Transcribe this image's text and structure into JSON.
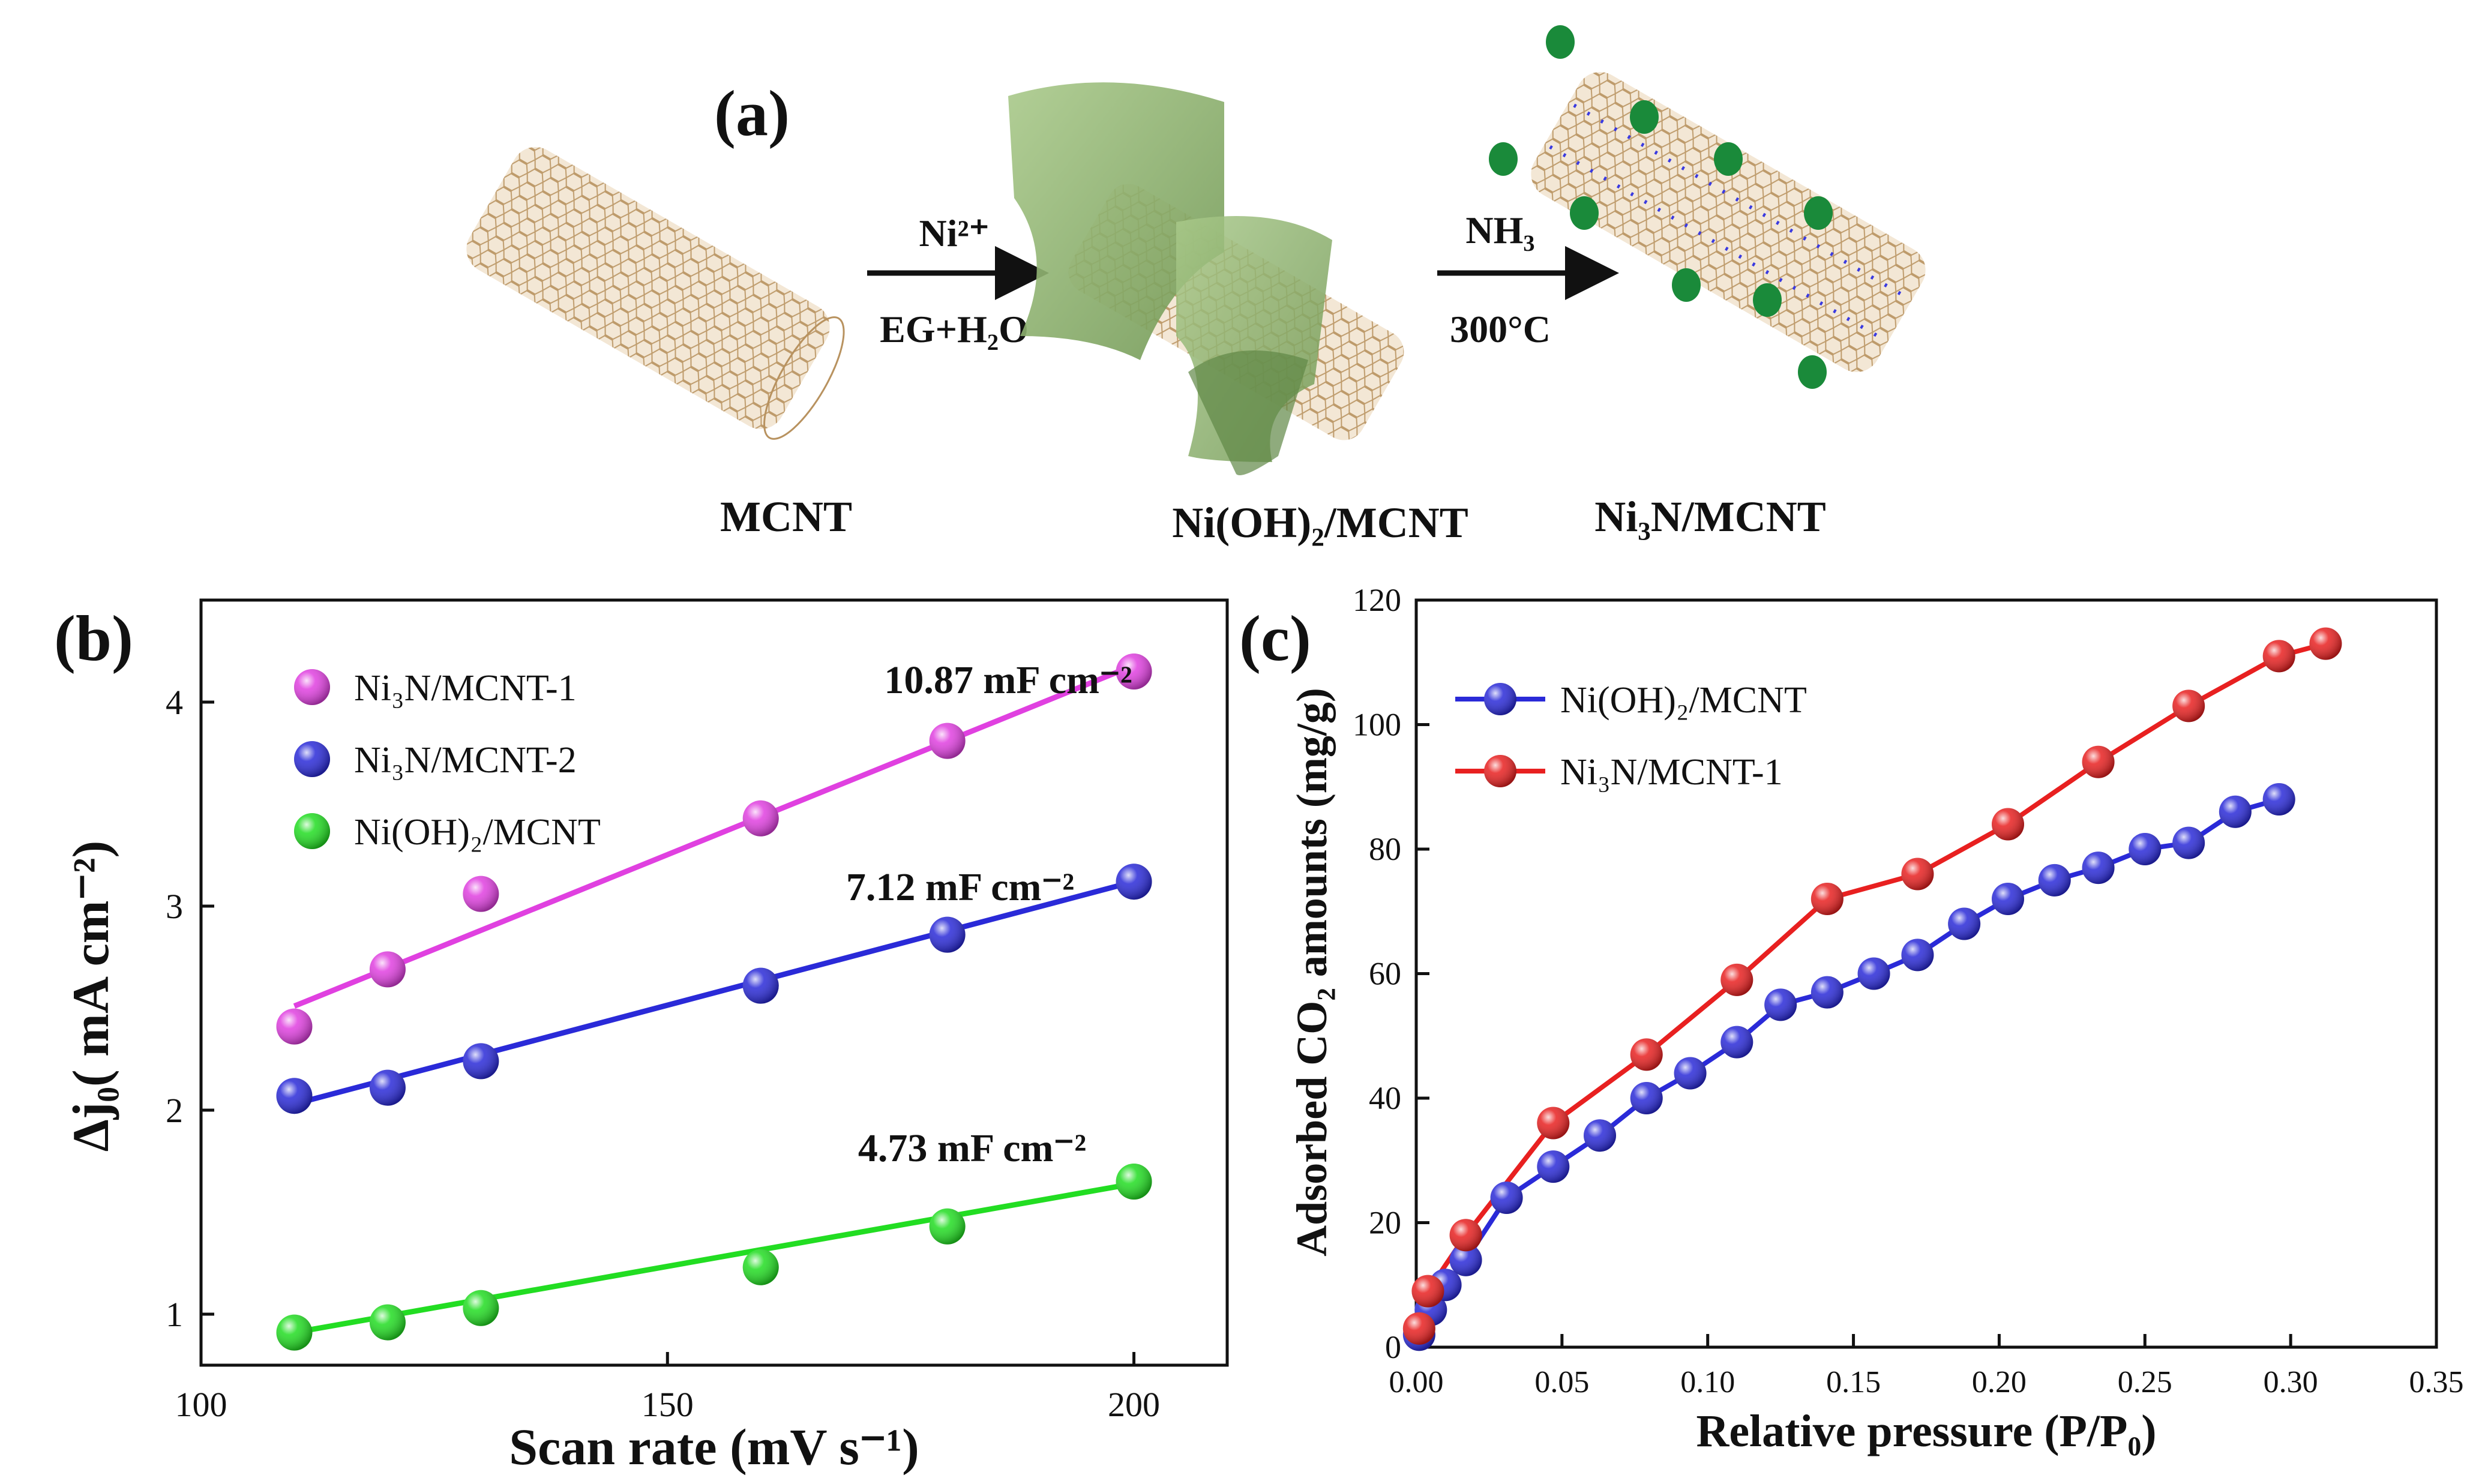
{
  "panel_a": {
    "label": "(a)",
    "step1_top": "Ni²⁺",
    "step1_bottom": "EG+H₂O",
    "step2_top": "NH₃",
    "step2_bottom": "300°C",
    "name_mcnt": "MCNT",
    "name_nioh": "Ni(OH)₂/MCNT",
    "name_ni3n": "Ni₃N/MCNT",
    "colors": {
      "tube": "#c9a77a",
      "sheet": "#8fb070",
      "particle": "#1a8a3a",
      "dots": "#3a3ae0"
    }
  },
  "chart_data": [
    {
      "type": "scatter",
      "panel_label": "(b)",
      "xlabel": "Scan rate (mV s⁻¹)",
      "ylabel": "Δj₀( mA cm⁻²)",
      "xlim": [
        100,
        210
      ],
      "ylim": [
        0.75,
        4.5
      ],
      "xticks": [
        100,
        150,
        200
      ],
      "yticks": [
        1,
        2,
        3,
        4
      ],
      "series": [
        {
          "name": "Ni₃N/MCNT-1",
          "color": "#e040e0",
          "x": [
            110,
            120,
            130,
            160,
            180,
            200
          ],
          "y": [
            2.41,
            2.69,
            3.06,
            3.43,
            3.81,
            4.15
          ],
          "fit": [
            [
              110,
              2.51
            ],
            [
              200,
              4.18
            ]
          ],
          "annotation": "10.87 mF cm⁻²"
        },
        {
          "name": "Ni₃N/MCNT-2",
          "color": "#2a2ad8",
          "x": [
            110,
            120,
            130,
            160,
            180,
            200
          ],
          "y": [
            2.07,
            2.11,
            2.24,
            2.61,
            2.86,
            3.12
          ],
          "fit": [
            [
              110,
              2.03
            ],
            [
              200,
              3.12
            ]
          ],
          "annotation": "7.12 mF cm⁻²"
        },
        {
          "name": "Ni(OH)₂/MCNT",
          "color": "#22dd22",
          "x": [
            110,
            120,
            130,
            160,
            180,
            200
          ],
          "y": [
            0.91,
            0.96,
            1.03,
            1.23,
            1.43,
            1.65
          ],
          "fit": [
            [
              110,
              0.91
            ],
            [
              200,
              1.64
            ]
          ],
          "annotation": "4.73 mF cm⁻²"
        }
      ]
    },
    {
      "type": "line",
      "panel_label": "(c)",
      "xlabel": "Relative pressure (P/P₀)",
      "ylabel": "Adsorbed CO₂ amounts (mg/g)",
      "xlim": [
        0,
        0.35
      ],
      "ylim": [
        0,
        120
      ],
      "xticks": [
        "0.00",
        "0.05",
        "0.10",
        "0.15",
        "0.20",
        "0.25",
        "0.30",
        "0.35"
      ],
      "yticks": [
        "0",
        "20",
        "40",
        "60",
        "80",
        "100",
        "120"
      ],
      "series": [
        {
          "name": "Ni(OH)₂/MCNT",
          "color": "#2a2ad8",
          "x": [
            0.001,
            0.005,
            0.01,
            0.017,
            0.031,
            0.047,
            0.063,
            0.079,
            0.094,
            0.11,
            0.125,
            0.141,
            0.157,
            0.172,
            0.188,
            0.203,
            0.219,
            0.234,
            0.25,
            0.265,
            0.281,
            0.296
          ],
          "y": [
            2,
            6,
            10,
            14,
            24,
            29,
            34,
            40,
            44,
            49,
            55,
            57,
            60,
            63,
            68,
            72,
            75,
            77,
            80,
            81,
            86,
            88
          ]
        },
        {
          "name": "Ni₃N/MCNT-1",
          "color": "#e82020",
          "x": [
            0.001,
            0.004,
            0.017,
            0.047,
            0.079,
            0.11,
            0.141,
            0.172,
            0.203,
            0.234,
            0.265,
            0.296,
            0.312
          ],
          "y": [
            3,
            9,
            18,
            36,
            47,
            59,
            72,
            76,
            84,
            94,
            103,
            111,
            113
          ]
        }
      ]
    }
  ]
}
